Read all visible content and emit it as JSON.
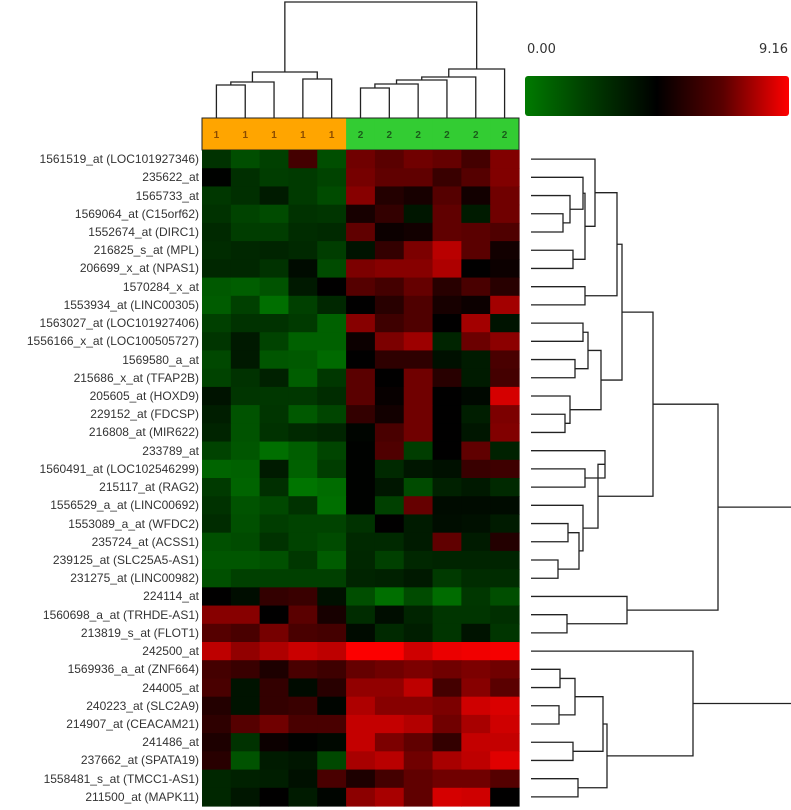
{
  "legend": {
    "min_label": "0.00",
    "max_label": "9.16",
    "colors": [
      "#007a00",
      "#000000",
      "#ff0000"
    ]
  },
  "groups": {
    "labels": [
      "1",
      "1",
      "1",
      "1",
      "1",
      "2",
      "2",
      "2",
      "2",
      "2",
      "2"
    ],
    "colors": {
      "1": "#ffa500",
      "2": "#33cc33"
    },
    "text_colors": {
      "1": "#8a4b00",
      "2": "#1a5c1a"
    }
  },
  "chart_data": {
    "type": "heatmap",
    "title": "",
    "colorscale": {
      "min": 0.0,
      "max": 9.16,
      "low": "#007a00",
      "mid": "#000000",
      "high": "#ff0000"
    },
    "columns": [
      "1",
      "1",
      "1",
      "1",
      "1",
      "2",
      "2",
      "2",
      "2",
      "2",
      "2"
    ],
    "rows": [
      "1561519_at (LOC101927346)",
      "235622_at",
      "1565733_at",
      "1569064_at (C15orf62)",
      "1552674_at (DIRC1)",
      "216825_s_at (MPL)",
      "206699_x_at (NPAS1)",
      "1570284_x_at",
      "1553934_at (LINC00305)",
      "1563027_at (LOC101927406)",
      "1556166_x_at (LOC100505727)",
      "1569580_a_at",
      "215686_x_at (TFAP2B)",
      "205605_at (HOXD9)",
      "229152_at (FDCSP)",
      "216808_at (MIR622)",
      "233789_at",
      "1560491_at (LOC102546299)",
      "215117_at (RAG2)",
      "1556529_a_at (LINC00692)",
      "1553089_a_at (WFDC2)",
      "235724_at (ACSS1)",
      "239125_at (SLC25A5-AS1)",
      "231275_at (LINC00982)",
      "224114_at",
      "1560698_a_at (TRHDE-AS1)",
      "213819_s_at (FLOT1)",
      "242500_at",
      "1569936_a_at (ZNF664)",
      "244005_at",
      "240223_at (SLC2A9)",
      "214907_at (CEACAM21)",
      "241486_at",
      "237662_at (SPATA19)",
      "1558481_s_at (TMCC1-AS1)",
      "211500_at (MAPK11)"
    ],
    "values": [
      [
        2.8,
        1.8,
        2.3,
        5.8,
        1.8,
        6.6,
        6.2,
        6.6,
        6.4,
        5.8,
        6.9
      ],
      [
        4.5,
        2.9,
        2.4,
        2.5,
        2.2,
        6.7,
        6.3,
        6.3,
        5.6,
        6.1,
        6.9
      ],
      [
        2.6,
        2.9,
        3.6,
        2.5,
        1.9,
        7.0,
        5.2,
        5.0,
        6.1,
        4.9,
        6.6
      ],
      [
        2.8,
        2.2,
        1.9,
        2.8,
        2.7,
        5.0,
        5.5,
        3.8,
        6.3,
        3.6,
        6.6
      ],
      [
        3.1,
        2.4,
        2.4,
        3.0,
        3.1,
        6.3,
        4.8,
        4.9,
        6.3,
        6.2,
        6.0
      ],
      [
        3.0,
        3.2,
        3.3,
        3.1,
        2.4,
        3.9,
        5.5,
        6.8,
        7.9,
        6.2,
        4.9
      ],
      [
        3.2,
        3.2,
        2.8,
        4.2,
        1.9,
        6.8,
        7.0,
        7.0,
        7.7,
        4.6,
        4.8
      ],
      [
        1.4,
        1.2,
        1.6,
        3.7,
        4.6,
        6.1,
        5.8,
        6.4,
        5.3,
        5.9,
        5.3
      ],
      [
        1.3,
        2.3,
        0.6,
        2.3,
        3.2,
        4.6,
        5.3,
        6.0,
        5.0,
        4.8,
        7.5
      ],
      [
        2.3,
        2.8,
        2.8,
        2.5,
        1.1,
        7.0,
        5.7,
        6.0,
        4.6,
        7.5,
        3.9
      ],
      [
        2.7,
        3.7,
        2.2,
        1.1,
        1.1,
        4.8,
        6.8,
        7.4,
        3.3,
        6.5,
        7.1
      ],
      [
        2.0,
        3.7,
        1.5,
        1.4,
        0.8,
        4.6,
        5.4,
        5.4,
        4.0,
        3.6,
        5.9
      ],
      [
        2.2,
        2.8,
        3.4,
        1.2,
        2.6,
        6.2,
        4.6,
        6.6,
        5.3,
        3.6,
        5.8
      ],
      [
        3.9,
        2.7,
        2.6,
        2.6,
        3.0,
        6.2,
        4.7,
        6.6,
        4.6,
        4.3,
        8.4
      ],
      [
        3.5,
        1.6,
        2.7,
        1.4,
        2.1,
        5.5,
        4.9,
        6.6,
        4.6,
        3.5,
        6.8
      ],
      [
        3.3,
        1.6,
        2.8,
        3.1,
        3.3,
        4.4,
        5.9,
        6.6,
        4.6,
        3.8,
        6.9
      ],
      [
        2.2,
        1.5,
        0.6,
        1.2,
        2.1,
        4.5,
        6.0,
        2.4,
        4.6,
        6.3,
        3.4
      ],
      [
        1.0,
        1.1,
        3.6,
        1.1,
        2.4,
        4.5,
        3.1,
        3.8,
        4.0,
        5.6,
        5.7
      ],
      [
        2.5,
        1.0,
        2.9,
        0.4,
        0.7,
        4.5,
        3.8,
        1.9,
        3.4,
        3.7,
        3.1
      ],
      [
        2.8,
        1.6,
        2.0,
        2.8,
        0.6,
        4.5,
        2.3,
        6.4,
        4.2,
        4.2,
        4.2
      ],
      [
        3.0,
        1.7,
        2.4,
        2.2,
        2.2,
        2.8,
        4.6,
        3.6,
        4.1,
        4.0,
        3.6
      ],
      [
        1.7,
        1.9,
        2.8,
        2.2,
        1.9,
        3.1,
        3.1,
        3.6,
        6.3,
        3.6,
        5.2
      ],
      [
        1.5,
        1.5,
        1.7,
        2.6,
        1.3,
        3.2,
        2.3,
        3.2,
        3.3,
        3.3,
        3.3
      ],
      [
        1.7,
        2.3,
        2.3,
        2.3,
        2.3,
        3.3,
        3.4,
        3.7,
        2.5,
        3.0,
        3.0
      ],
      [
        4.6,
        4.1,
        5.5,
        5.6,
        4.0,
        1.8,
        0.6,
        1.9,
        0.7,
        2.6,
        1.8
      ],
      [
        7.0,
        7.0,
        4.6,
        6.2,
        5.0,
        3.0,
        4.1,
        3.3,
        2.7,
        2.7,
        2.9
      ],
      [
        6.1,
        5.9,
        6.7,
        5.9,
        5.8,
        4.2,
        3.1,
        3.5,
        2.7,
        3.9,
        2.7
      ],
      [
        8.0,
        7.2,
        7.7,
        8.2,
        8.0,
        9.1,
        9.1,
        8.3,
        8.8,
        8.9,
        9.0
      ],
      [
        5.8,
        5.6,
        5.1,
        5.9,
        5.7,
        6.4,
        6.6,
        6.8,
        6.6,
        6.8,
        6.6
      ],
      [
        5.9,
        3.9,
        5.5,
        4.2,
        5.3,
        7.2,
        7.2,
        8.0,
        5.8,
        7.0,
        6.2
      ],
      [
        5.2,
        3.9,
        5.5,
        5.6,
        4.4,
        7.7,
        7.0,
        7.0,
        6.8,
        8.3,
        8.5
      ],
      [
        5.4,
        6.1,
        6.6,
        5.9,
        5.9,
        8.1,
        8.1,
        7.8,
        6.6,
        7.6,
        8.3
      ],
      [
        5.1,
        2.8,
        4.8,
        4.5,
        4.3,
        8.1,
        6.8,
        6.3,
        5.5,
        8.1,
        8.1
      ],
      [
        5.3,
        1.6,
        3.6,
        3.8,
        2.0,
        7.6,
        7.9,
        6.6,
        7.6,
        8.0,
        8.6
      ],
      [
        3.2,
        3.4,
        3.5,
        4.0,
        5.9,
        5.1,
        5.8,
        6.3,
        6.6,
        6.6,
        6.1
      ],
      [
        3.2,
        3.8,
        4.6,
        3.6,
        4.4,
        7.1,
        7.6,
        6.3,
        8.4,
        8.3,
        4.6
      ]
    ],
    "col_dendrogram": "samples split into cluster 1 (5 samples) and cluster 2 (6 samples)",
    "row_dendrogram": "genes split into upregulated-in-2 (rows 1-24), downregulated-in-2 (rows 25-27), and high-expression group (rows 28-36)",
    "legend_position": "top-right"
  }
}
